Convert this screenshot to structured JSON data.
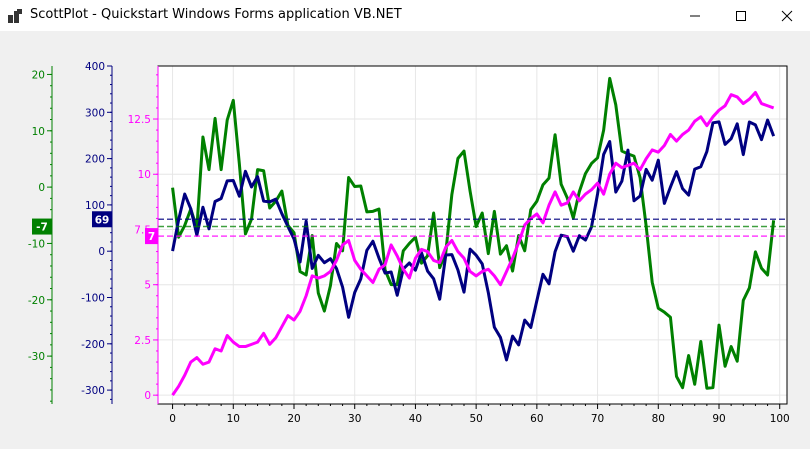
{
  "window": {
    "title": "ScottPlot - Quickstart Windows Forms application VB.NET",
    "icon": "scottplot-app-icon",
    "controls": [
      "minimize-icon",
      "maximize-icon",
      "close-icon"
    ]
  },
  "colors": {
    "green": "#008000",
    "navy": "#000080",
    "magenta": "#ff00ff",
    "grid": "#e6e6e6"
  },
  "chart_data": {
    "type": "line",
    "title": "",
    "xlabel": "",
    "ylabel": "",
    "grid": true,
    "x": [
      0,
      1,
      2,
      3,
      4,
      5,
      6,
      7,
      8,
      9,
      10,
      11,
      12,
      13,
      14,
      15,
      16,
      17,
      18,
      19,
      20,
      21,
      22,
      23,
      24,
      25,
      26,
      27,
      28,
      29,
      30,
      31,
      32,
      33,
      34,
      35,
      36,
      37,
      38,
      39,
      40,
      41,
      42,
      43,
      44,
      45,
      46,
      47,
      48,
      49,
      50,
      51,
      52,
      53,
      54,
      55,
      56,
      57,
      58,
      59,
      60,
      61,
      62,
      63,
      64,
      65,
      66,
      67,
      68,
      69,
      70,
      71,
      72,
      73,
      74,
      75,
      76,
      77,
      78,
      79,
      80,
      81,
      82,
      83,
      84,
      85,
      86,
      87,
      88,
      89,
      90,
      91,
      92,
      93,
      94,
      95,
      96,
      97,
      98,
      99
    ],
    "axes": {
      "x": {
        "min": -2.4,
        "max": 101.2,
        "ticks": [
          0,
          10,
          20,
          30,
          40,
          50,
          60,
          70,
          80,
          90,
          100
        ],
        "tick_labels": [
          "0",
          "10",
          "20",
          "30",
          "40",
          "50",
          "60",
          "70",
          "80",
          "90",
          "100"
        ]
      },
      "magenta_y": {
        "min": -0.4,
        "max": 14.9,
        "ticks": [
          0,
          2.5,
          5,
          7.5,
          10,
          12.5
        ],
        "tick_labels": [
          "0",
          "2.5",
          "5",
          "7.5",
          "10",
          "12.5"
        ],
        "color": "#ff00ff",
        "position": "left-inner"
      },
      "navy_y": {
        "min": -330,
        "max": 400,
        "ticks": [
          400,
          300,
          200,
          100,
          0,
          -100,
          -200,
          -300
        ],
        "tick_labels": [
          "400",
          "300",
          "200",
          "100",
          "0",
          "-100",
          "-200",
          "-300"
        ],
        "color": "#000080",
        "position": "left-middle"
      },
      "green_y": {
        "min": -38.5,
        "max": 21.5,
        "ticks": [
          20,
          10,
          0,
          -10,
          -20,
          -30
        ],
        "tick_labels": [
          "20",
          "10",
          "0",
          "-10",
          "-20",
          "-30"
        ],
        "color": "#008000",
        "position": "left-outer"
      }
    },
    "series": [
      {
        "axis": "green_y",
        "color": "#008000",
        "values": [
          -0.1,
          -8.9,
          -6.8,
          -3.9,
          -7.3,
          8.9,
          3.1,
          12.2,
          3.1,
          11.9,
          15.4,
          4.1,
          -8.3,
          -5.7,
          3.1,
          2.9,
          -3.7,
          -2.5,
          -0.7,
          -6.8,
          -8.1,
          -15.0,
          -15.6,
          -8.6,
          -18.8,
          -22.0,
          -17.5,
          -10.0,
          -11.3,
          1.7,
          0.1,
          0.2,
          -4.4,
          -4.3,
          -3.9,
          -14.7,
          -17.3,
          -17.3,
          -11.3,
          -10.0,
          -8.9,
          -13.5,
          -12.2,
          -4.6,
          -14.3,
          -11.6,
          -1.3,
          5.1,
          6.4,
          -0.7,
          -7.0,
          -4.6,
          -11.8,
          -4.3,
          -11.9,
          -10.4,
          -14.9,
          -8.6,
          -11.3,
          -4.0,
          -2.5,
          0.4,
          1.6,
          9.3,
          0.5,
          -1.9,
          -5.5,
          -0.8,
          2.4,
          4.2,
          5.2,
          10.1,
          19.3,
          14.6,
          6.4,
          5.9,
          5.5,
          1.7,
          -6.9,
          -16.9,
          -21.5,
          -22.2,
          -23.1,
          -33.6,
          -35.6,
          -29.9,
          -35.0,
          -27.4,
          -35.7,
          -35.6,
          -24.5,
          -31.8,
          -28.3,
          -30.9,
          -20.1,
          -17.9,
          -11.5,
          -14.4,
          -15.6,
          -5.9
        ]
      },
      {
        "axis": "navy_y",
        "color": "#000080",
        "values": [
          0.3,
          68.1,
          123.4,
          91.6,
          34.6,
          95.0,
          48.4,
          107.4,
          113.8,
          151.9,
          152.6,
          118.7,
          172.6,
          138.8,
          161.1,
          108.2,
          106.5,
          112.4,
          81.0,
          53.3,
          26.4,
          -23.3,
          65.1,
          -37.2,
          -8.9,
          -24.8,
          -16.2,
          -37.4,
          -77.4,
          -142.8,
          -89.2,
          -59.7,
          2.0,
          21.6,
          -15.0,
          -47.2,
          -44.9,
          -95.2,
          -38.4,
          -25.3,
          -41.0,
          -3.4,
          -42.8,
          -59.7,
          -103.6,
          -8.1,
          -7.3,
          -40.6,
          -88.4,
          4.4,
          -8.7,
          -27.3,
          -89.3,
          -164.2,
          -186.2,
          -234.8,
          -183.4,
          -202.4,
          -148.8,
          -164.7,
          -106.7,
          -49.9,
          -70.4,
          -1.2,
          34.6,
          31.7,
          0.0,
          33.5,
          24.0,
          52.5,
          123.8,
          209.0,
          236.9,
          127.7,
          151.2,
          218.3,
          108.9,
          119.0,
          176.7,
          153.3,
          196.7,
          103.2,
          138.4,
          171.8,
          135.2,
          121.1,
          177.2,
          182.5,
          215.3,
          277.3,
          279.4,
          230.8,
          243.0,
          275.1,
          208.6,
          279.0,
          272.8,
          240.9,
          283.3,
          248.6
        ]
      },
      {
        "axis": "magenta_y",
        "color": "#ff00ff",
        "values": [
          0.0,
          0.4,
          0.9,
          1.5,
          1.7,
          1.4,
          1.5,
          2.1,
          2.0,
          2.7,
          2.4,
          2.2,
          2.2,
          2.3,
          2.4,
          2.8,
          2.3,
          2.6,
          3.1,
          3.6,
          3.4,
          3.8,
          4.5,
          5.4,
          5.3,
          5.4,
          5.6,
          6.1,
          6.8,
          7.0,
          6.1,
          5.7,
          5.4,
          5.1,
          5.7,
          5.9,
          6.8,
          6.3,
          5.7,
          5.3,
          6.2,
          6.6,
          6.5,
          6.1,
          6.0,
          6.7,
          7.0,
          6.5,
          6.2,
          5.6,
          5.4,
          5.6,
          5.7,
          5.4,
          5.0,
          5.6,
          6.2,
          6.9,
          7.7,
          8.0,
          8.2,
          7.8,
          8.6,
          9.2,
          8.6,
          8.7,
          9.2,
          8.8,
          9.1,
          9.3,
          9.6,
          9.1,
          10.0,
          10.5,
          10.3,
          10.4,
          10.5,
          10.2,
          10.7,
          11.1,
          11.0,
          11.3,
          11.8,
          11.5,
          11.8,
          12.0,
          12.4,
          12.6,
          12.2,
          12.6,
          12.9,
          13.1,
          13.6,
          13.5,
          13.2,
          13.4,
          13.7,
          13.2,
          13.1,
          13.0
        ]
      }
    ],
    "reference_lines": [
      {
        "axis": "navy_y",
        "value": 69,
        "color": "#000080",
        "label": "69"
      },
      {
        "axis": "green_y",
        "value": -7,
        "color": "#008000",
        "label": "-7"
      },
      {
        "axis": "magenta_y",
        "value": 7.2,
        "color": "#ff00ff",
        "label": "7"
      }
    ]
  }
}
